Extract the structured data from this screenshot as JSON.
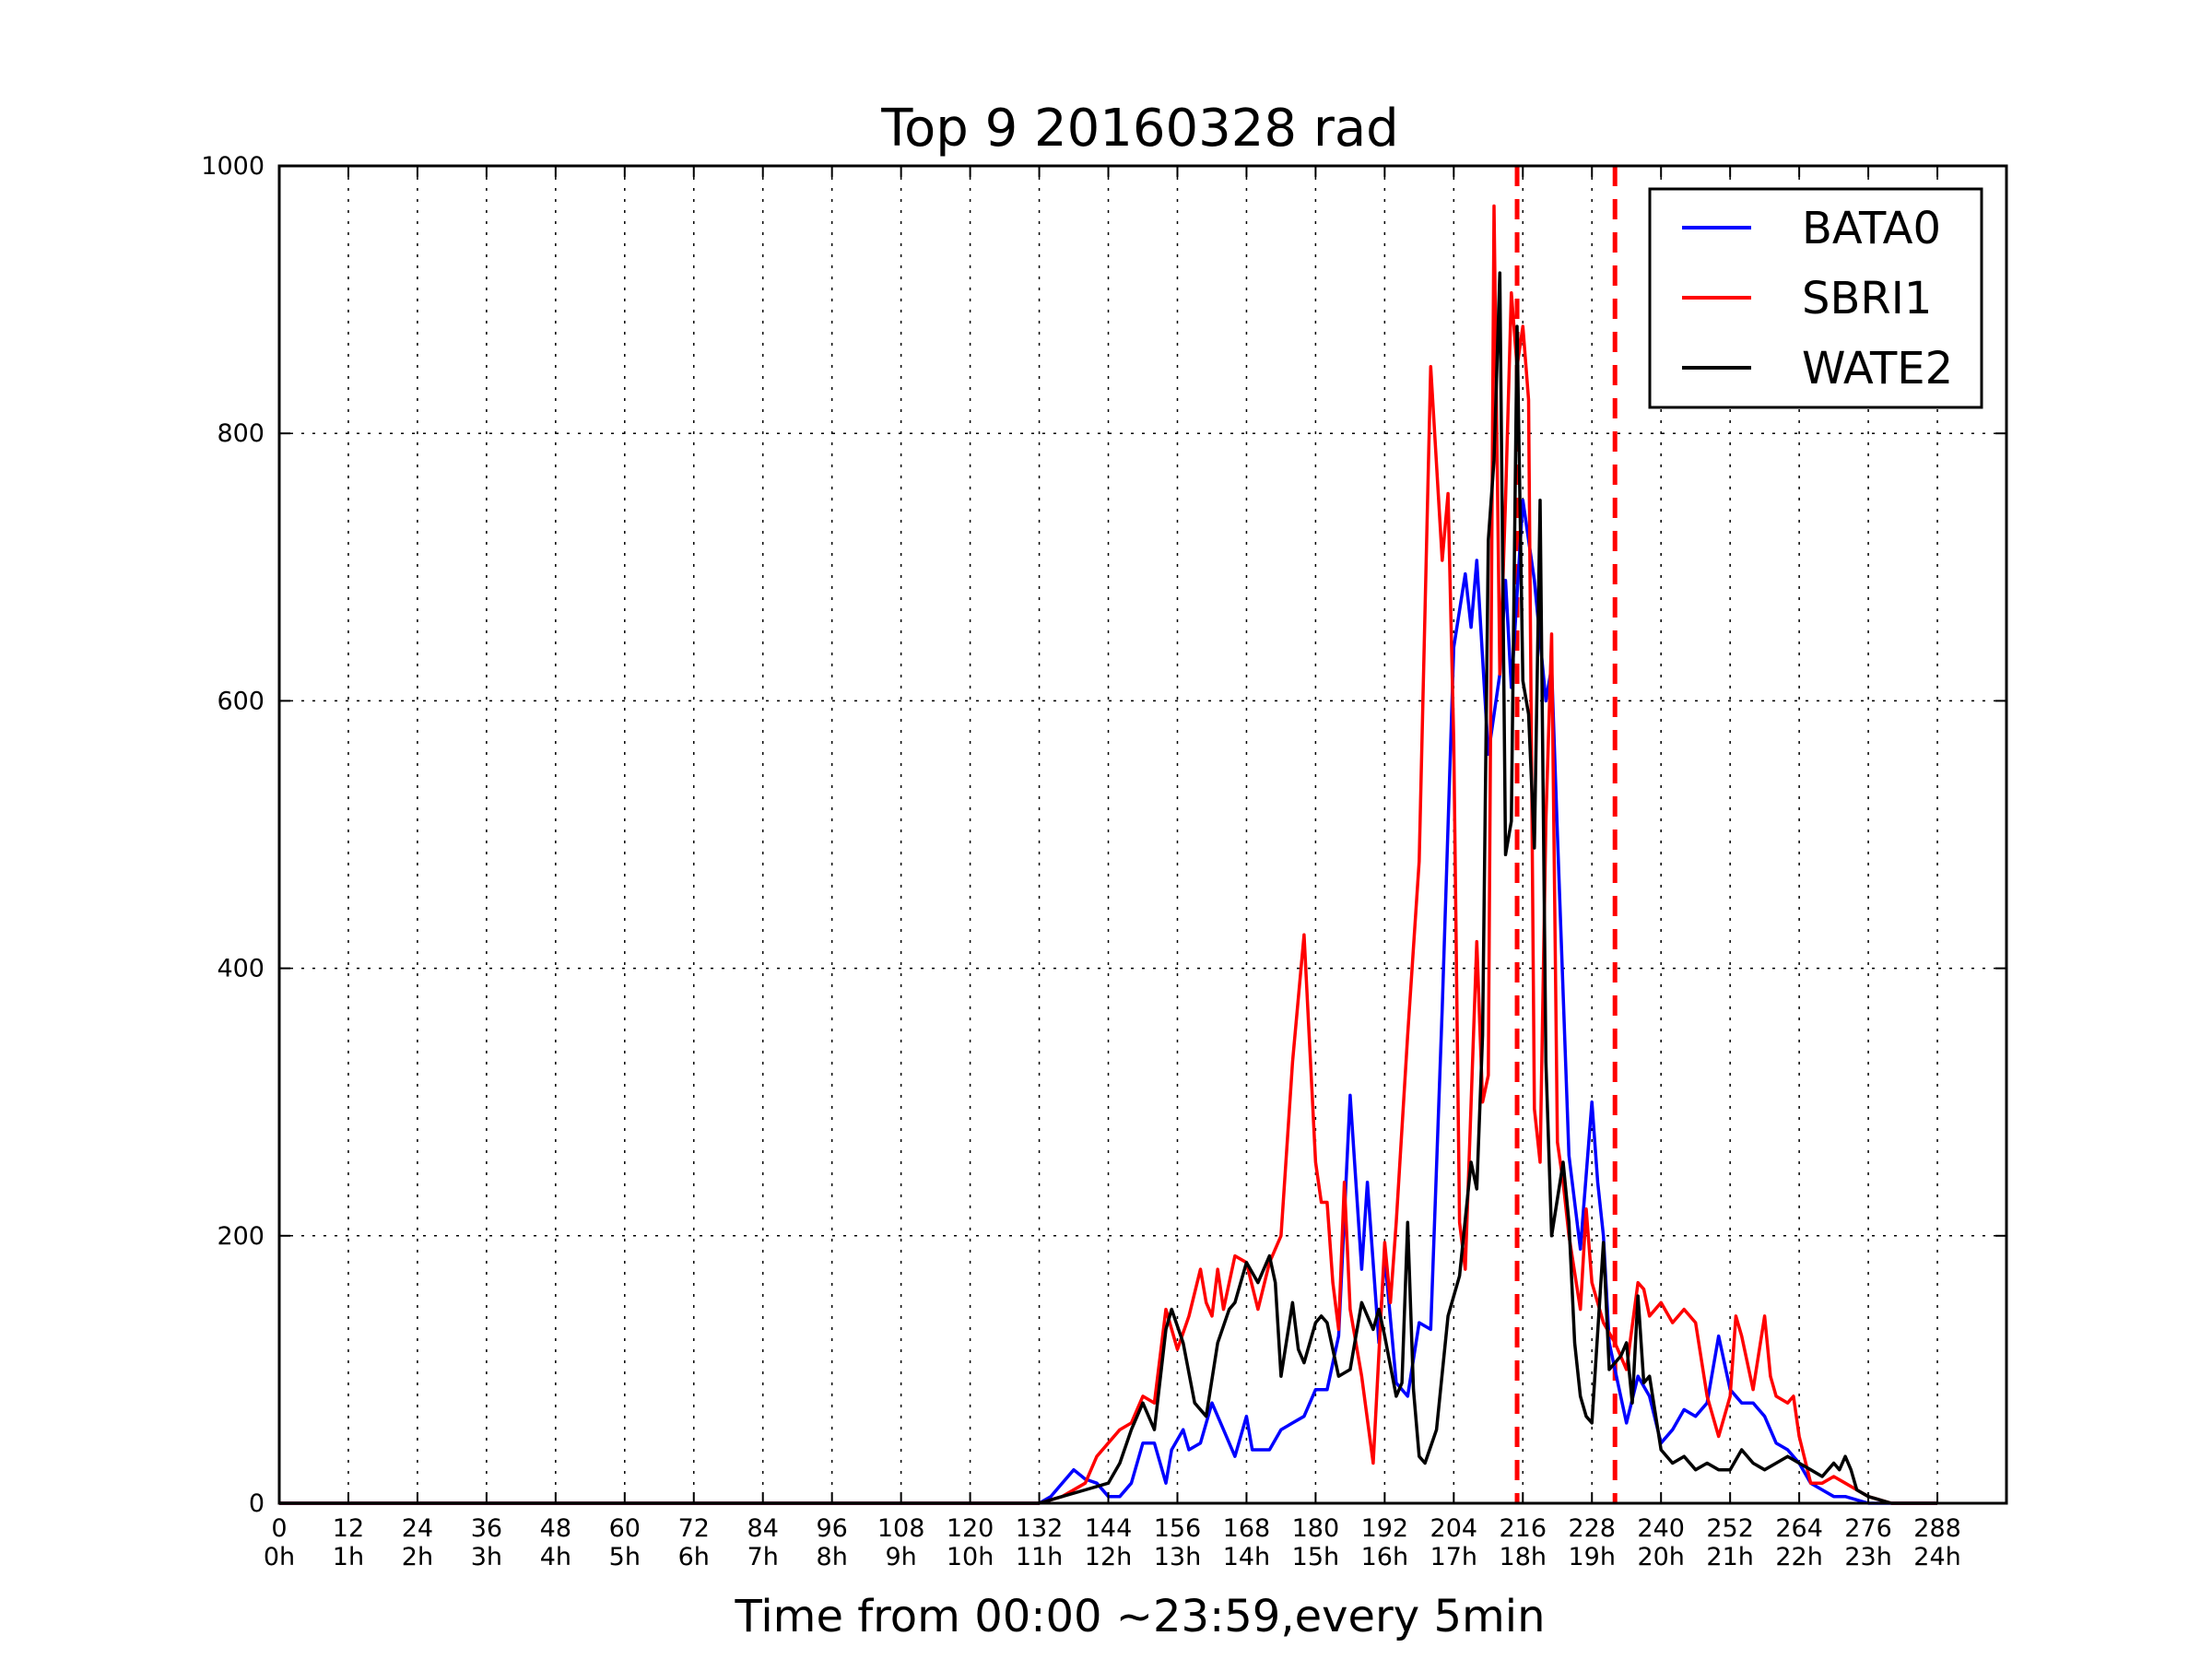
{
  "chart_data": {
    "type": "line",
    "title": "Top 9 20160328 rad",
    "xlabel": "Time from 00:00 ~23:59,every 5min",
    "ylabel": "",
    "xlim": [
      0,
      300
    ],
    "ylim": [
      0,
      1000
    ],
    "grid": true,
    "legend_placement": "top-right",
    "x_ticks": [
      0,
      12,
      24,
      36,
      48,
      60,
      72,
      84,
      96,
      108,
      120,
      132,
      144,
      156,
      168,
      180,
      192,
      204,
      216,
      228,
      240,
      252,
      264,
      276,
      288
    ],
    "x_tick_labels": [
      "0\n0h",
      "12\n1h",
      "24\n2h",
      "36\n3h",
      "48\n4h",
      "60\n5h",
      "72\n6h",
      "84\n7h",
      "96\n8h",
      "108\n9h",
      "120\n10h",
      "132\n11h",
      "144\n12h",
      "156\n13h",
      "168\n14h",
      "180\n15h",
      "192\n16h",
      "204\n17h",
      "216\n18h",
      "228\n19h",
      "240\n20h",
      "252\n21h",
      "264\n22h",
      "276\n23h",
      "288\n24h"
    ],
    "y_ticks": [
      0,
      200,
      400,
      600,
      800,
      1000
    ],
    "y_tick_labels": [
      "0",
      "200",
      "400",
      "600",
      "800",
      "1000"
    ],
    "vlines": [
      {
        "x": 215,
        "color": "#ff0000",
        "style": "dashed"
      },
      {
        "x": 232,
        "color": "#ff0000",
        "style": "dashed"
      }
    ],
    "series": [
      {
        "name": "BATA0",
        "color": "#0000ff",
        "points": [
          [
            0,
            0
          ],
          [
            132,
            0
          ],
          [
            134,
            5
          ],
          [
            136,
            15
          ],
          [
            138,
            25
          ],
          [
            140,
            18
          ],
          [
            142,
            15
          ],
          [
            144,
            5
          ],
          [
            146,
            5
          ],
          [
            148,
            15
          ],
          [
            150,
            45
          ],
          [
            152,
            45
          ],
          [
            154,
            15
          ],
          [
            155,
            40
          ],
          [
            157,
            55
          ],
          [
            158,
            40
          ],
          [
            160,
            45
          ],
          [
            162,
            75
          ],
          [
            164,
            55
          ],
          [
            166,
            35
          ],
          [
            168,
            65
          ],
          [
            169,
            40
          ],
          [
            172,
            40
          ],
          [
            174,
            55
          ],
          [
            176,
            60
          ],
          [
            178,
            65
          ],
          [
            180,
            85
          ],
          [
            182,
            85
          ],
          [
            184,
            125
          ],
          [
            186,
            305
          ],
          [
            188,
            175
          ],
          [
            189,
            240
          ],
          [
            191,
            120
          ],
          [
            192,
            185
          ],
          [
            194,
            90
          ],
          [
            196,
            80
          ],
          [
            198,
            135
          ],
          [
            200,
            130
          ],
          [
            202,
            370
          ],
          [
            204,
            640
          ],
          [
            206,
            695
          ],
          [
            207,
            655
          ],
          [
            208,
            705
          ],
          [
            210,
            560
          ],
          [
            212,
            620
          ],
          [
            213,
            690
          ],
          [
            214,
            610
          ],
          [
            216,
            750
          ],
          [
            218,
            690
          ],
          [
            219,
            645
          ],
          [
            220,
            600
          ],
          [
            221,
            625
          ],
          [
            222,
            500
          ],
          [
            224,
            260
          ],
          [
            226,
            190
          ],
          [
            228,
            300
          ],
          [
            229,
            240
          ],
          [
            230,
            200
          ],
          [
            231,
            120
          ],
          [
            232,
            100
          ],
          [
            234,
            60
          ],
          [
            236,
            95
          ],
          [
            238,
            80
          ],
          [
            240,
            45
          ],
          [
            242,
            55
          ],
          [
            244,
            70
          ],
          [
            246,
            65
          ],
          [
            248,
            75
          ],
          [
            250,
            125
          ],
          [
            252,
            85
          ],
          [
            254,
            75
          ],
          [
            256,
            75
          ],
          [
            258,
            65
          ],
          [
            260,
            45
          ],
          [
            262,
            40
          ],
          [
            264,
            30
          ],
          [
            266,
            15
          ],
          [
            268,
            10
          ],
          [
            270,
            5
          ],
          [
            272,
            5
          ],
          [
            276,
            0
          ],
          [
            288,
            0
          ]
        ]
      },
      {
        "name": "SBRI1",
        "color": "#ff0000",
        "points": [
          [
            0,
            0
          ],
          [
            132,
            0
          ],
          [
            136,
            5
          ],
          [
            140,
            15
          ],
          [
            142,
            35
          ],
          [
            144,
            45
          ],
          [
            146,
            55
          ],
          [
            148,
            60
          ],
          [
            150,
            80
          ],
          [
            152,
            75
          ],
          [
            154,
            145
          ],
          [
            156,
            115
          ],
          [
            158,
            140
          ],
          [
            160,
            175
          ],
          [
            161,
            150
          ],
          [
            162,
            140
          ],
          [
            163,
            175
          ],
          [
            164,
            145
          ],
          [
            166,
            185
          ],
          [
            168,
            180
          ],
          [
            170,
            145
          ],
          [
            172,
            180
          ],
          [
            174,
            200
          ],
          [
            176,
            330
          ],
          [
            178,
            425
          ],
          [
            180,
            255
          ],
          [
            181,
            225
          ],
          [
            182,
            225
          ],
          [
            183,
            165
          ],
          [
            184,
            130
          ],
          [
            185,
            240
          ],
          [
            186,
            145
          ],
          [
            188,
            95
          ],
          [
            190,
            30
          ],
          [
            192,
            195
          ],
          [
            193,
            150
          ],
          [
            194,
            210
          ],
          [
            196,
            350
          ],
          [
            198,
            480
          ],
          [
            200,
            850
          ],
          [
            202,
            705
          ],
          [
            203,
            755
          ],
          [
            204,
            570
          ],
          [
            205,
            210
          ],
          [
            206,
            175
          ],
          [
            208,
            420
          ],
          [
            209,
            300
          ],
          [
            210,
            320
          ],
          [
            211,
            970
          ],
          [
            212,
            620
          ],
          [
            213,
            750
          ],
          [
            214,
            905
          ],
          [
            215,
            850
          ],
          [
            216,
            880
          ],
          [
            217,
            825
          ],
          [
            218,
            295
          ],
          [
            219,
            255
          ],
          [
            220,
            510
          ],
          [
            221,
            650
          ],
          [
            222,
            270
          ],
          [
            223,
            240
          ],
          [
            224,
            200
          ],
          [
            226,
            145
          ],
          [
            227,
            220
          ],
          [
            228,
            165
          ],
          [
            230,
            135
          ],
          [
            232,
            120
          ],
          [
            234,
            100
          ],
          [
            236,
            165
          ],
          [
            237,
            160
          ],
          [
            238,
            140
          ],
          [
            240,
            150
          ],
          [
            242,
            135
          ],
          [
            244,
            145
          ],
          [
            246,
            135
          ],
          [
            248,
            80
          ],
          [
            250,
            50
          ],
          [
            252,
            80
          ],
          [
            253,
            140
          ],
          [
            254,
            125
          ],
          [
            256,
            85
          ],
          [
            258,
            140
          ],
          [
            259,
            95
          ],
          [
            260,
            80
          ],
          [
            262,
            75
          ],
          [
            263,
            80
          ],
          [
            264,
            50
          ],
          [
            266,
            15
          ],
          [
            268,
            15
          ],
          [
            270,
            20
          ],
          [
            272,
            15
          ],
          [
            274,
            10
          ],
          [
            276,
            5
          ],
          [
            280,
            0
          ],
          [
            288,
            0
          ]
        ]
      },
      {
        "name": "WATE2",
        "color": "#000000",
        "points": [
          [
            0,
            0
          ],
          [
            132,
            0
          ],
          [
            136,
            5
          ],
          [
            140,
            10
          ],
          [
            144,
            15
          ],
          [
            146,
            30
          ],
          [
            148,
            55
          ],
          [
            150,
            75
          ],
          [
            152,
            55
          ],
          [
            154,
            130
          ],
          [
            155,
            145
          ],
          [
            157,
            120
          ],
          [
            159,
            75
          ],
          [
            161,
            65
          ],
          [
            163,
            120
          ],
          [
            165,
            145
          ],
          [
            166,
            150
          ],
          [
            168,
            180
          ],
          [
            170,
            165
          ],
          [
            172,
            185
          ],
          [
            173,
            165
          ],
          [
            174,
            95
          ],
          [
            176,
            150
          ],
          [
            177,
            115
          ],
          [
            178,
            105
          ],
          [
            180,
            135
          ],
          [
            181,
            140
          ],
          [
            182,
            135
          ],
          [
            184,
            95
          ],
          [
            186,
            100
          ],
          [
            188,
            150
          ],
          [
            190,
            130
          ],
          [
            191,
            145
          ],
          [
            192,
            125
          ],
          [
            194,
            80
          ],
          [
            195,
            90
          ],
          [
            196,
            210
          ],
          [
            197,
            85
          ],
          [
            198,
            35
          ],
          [
            199,
            30
          ],
          [
            201,
            55
          ],
          [
            203,
            140
          ],
          [
            205,
            170
          ],
          [
            207,
            255
          ],
          [
            208,
            235
          ],
          [
            209,
            350
          ],
          [
            210,
            720
          ],
          [
            211,
            780
          ],
          [
            212,
            920
          ],
          [
            213,
            485
          ],
          [
            214,
            510
          ],
          [
            215,
            880
          ],
          [
            216,
            615
          ],
          [
            217,
            590
          ],
          [
            218,
            490
          ],
          [
            219,
            750
          ],
          [
            220,
            330
          ],
          [
            221,
            200
          ],
          [
            223,
            255
          ],
          [
            224,
            210
          ],
          [
            225,
            120
          ],
          [
            226,
            80
          ],
          [
            227,
            65
          ],
          [
            228,
            60
          ],
          [
            230,
            195
          ],
          [
            231,
            100
          ],
          [
            233,
            110
          ],
          [
            234,
            120
          ],
          [
            235,
            75
          ],
          [
            236,
            155
          ],
          [
            237,
            90
          ],
          [
            238,
            95
          ],
          [
            240,
            40
          ],
          [
            242,
            30
          ],
          [
            244,
            35
          ],
          [
            246,
            25
          ],
          [
            248,
            30
          ],
          [
            250,
            25
          ],
          [
            252,
            25
          ],
          [
            254,
            40
          ],
          [
            256,
            30
          ],
          [
            258,
            25
          ],
          [
            260,
            30
          ],
          [
            262,
            35
          ],
          [
            264,
            30
          ],
          [
            266,
            25
          ],
          [
            268,
            20
          ],
          [
            270,
            30
          ],
          [
            271,
            25
          ],
          [
            272,
            35
          ],
          [
            273,
            25
          ],
          [
            274,
            10
          ],
          [
            276,
            5
          ],
          [
            280,
            0
          ],
          [
            288,
            0
          ]
        ]
      }
    ]
  }
}
